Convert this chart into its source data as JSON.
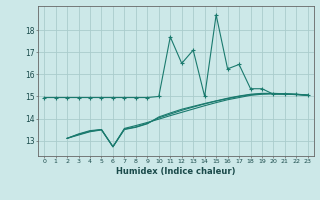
{
  "background_color": "#cce8e8",
  "grid_color": "#aacccc",
  "line_color": "#1a7a6e",
  "xlabel": "Humidex (Indice chaleur)",
  "xlim": [
    -0.5,
    23.5
  ],
  "ylim": [
    12.3,
    19.1
  ],
  "yticks": [
    13,
    14,
    15,
    16,
    17,
    18
  ],
  "xticks": [
    0,
    1,
    2,
    3,
    4,
    5,
    6,
    7,
    8,
    9,
    10,
    11,
    12,
    13,
    14,
    15,
    16,
    17,
    18,
    19,
    20,
    21,
    22,
    23
  ],
  "main_x": [
    0,
    1,
    2,
    3,
    4,
    5,
    6,
    7,
    8,
    9,
    10,
    11,
    12,
    13,
    14,
    15,
    16,
    17,
    18,
    19,
    20,
    21,
    22,
    23
  ],
  "main_y": [
    14.95,
    14.95,
    14.95,
    14.95,
    14.95,
    14.95,
    14.95,
    14.95,
    14.95,
    14.95,
    15.0,
    17.7,
    16.5,
    17.1,
    15.0,
    18.7,
    16.25,
    16.45,
    15.35,
    15.35,
    15.1,
    15.1,
    15.1,
    15.05
  ],
  "trend1_x": [
    2,
    3,
    4,
    5,
    6,
    7,
    8,
    9,
    10,
    11,
    12,
    13,
    14,
    15,
    16,
    17,
    18,
    19,
    20,
    21,
    22,
    23
  ],
  "trend1_y": [
    13.1,
    13.3,
    13.45,
    13.5,
    12.72,
    13.55,
    13.68,
    13.82,
    13.97,
    14.13,
    14.28,
    14.43,
    14.58,
    14.72,
    14.85,
    14.95,
    15.05,
    15.1,
    15.12,
    15.12,
    15.1,
    15.07
  ],
  "trend2_x": [
    2,
    3,
    4,
    5,
    6,
    7,
    8,
    9,
    10,
    11,
    12,
    13,
    14,
    15,
    16,
    17,
    18,
    19,
    20,
    21,
    22,
    23
  ],
  "trend2_y": [
    13.1,
    13.28,
    13.42,
    13.5,
    12.72,
    13.52,
    13.62,
    13.78,
    14.03,
    14.2,
    14.37,
    14.52,
    14.66,
    14.79,
    14.9,
    15.0,
    15.08,
    15.12,
    15.13,
    15.11,
    15.08,
    15.05
  ],
  "trend3_x": [
    2,
    3,
    4,
    5,
    6,
    7,
    8,
    9,
    10,
    11,
    12,
    13,
    14,
    15,
    16,
    17,
    18,
    19,
    20,
    21,
    22,
    23
  ],
  "trend3_y": [
    13.1,
    13.25,
    13.4,
    13.48,
    12.72,
    13.5,
    13.6,
    13.76,
    14.07,
    14.25,
    14.42,
    14.55,
    14.68,
    14.8,
    14.92,
    15.02,
    15.1,
    15.14,
    15.14,
    15.12,
    15.09,
    15.05
  ]
}
